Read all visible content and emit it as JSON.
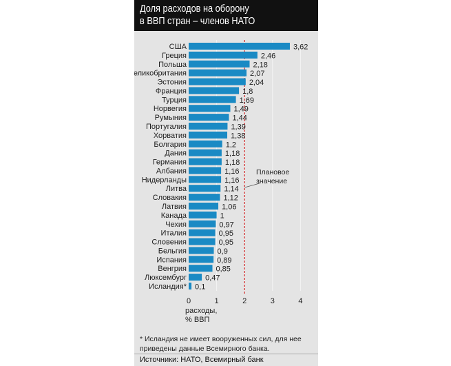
{
  "title_lines": [
    "Доля расходов на оборону",
    "в ВВП стран – членов НАТО"
  ],
  "chart_data": {
    "type": "bar",
    "orientation": "horizontal",
    "title": "Доля расходов на оборону в ВВП стран – членов НАТО",
    "categories": [
      "США",
      "Греция",
      "Польша",
      "Великобритания",
      "Эстония",
      "Франция",
      "Турция",
      "Норвегия",
      "Румыния",
      "Португалия",
      "Хорватия",
      "Болгария",
      "Дания",
      "Германия",
      "Албания",
      "Нидерланды",
      "Литва",
      "Словакия",
      "Латвия",
      "Канада",
      "Чехия",
      "Италия",
      "Словения",
      "Бельгия",
      "Испания",
      "Венгрия",
      "Люксембург",
      "Исландия*"
    ],
    "values": [
      3.62,
      2.46,
      2.18,
      2.07,
      2.04,
      1.8,
      1.69,
      1.49,
      1.44,
      1.39,
      1.38,
      1.2,
      1.18,
      1.18,
      1.16,
      1.16,
      1.14,
      1.12,
      1.06,
      1,
      0.97,
      0.95,
      0.95,
      0.9,
      0.89,
      0.85,
      0.47,
      0.1
    ],
    "value_labels": [
      "3,62",
      "2,46",
      "2,18",
      "2,07",
      "2,04",
      "1,8",
      "1,69",
      "1,49",
      "1,44",
      "1,39",
      "1,38",
      "1,2",
      "1,18",
      "1,18",
      "1,16",
      "1,16",
      "1,14",
      "1,12",
      "1,06",
      "1",
      "0,97",
      "0,95",
      "0,95",
      "0,9",
      "0,89",
      "0,85",
      "0,47",
      "0,1"
    ],
    "xlim": [
      0,
      4
    ],
    "xticks": [
      "0",
      "1",
      "2",
      "3",
      "4"
    ],
    "xlabel": [
      "расходы,",
      "% ВВП"
    ],
    "reference_line": {
      "value": 2,
      "label": [
        "Плановое",
        "значение"
      ],
      "color": "#d42a2a"
    },
    "bar_color": "#1a8ac4"
  },
  "footnote": [
    "* Исландия не имеет вооруженных сил, для нее",
    "приведены данные Всемирного банка."
  ],
  "source": "Источники: НАТО, Всемирный банк"
}
